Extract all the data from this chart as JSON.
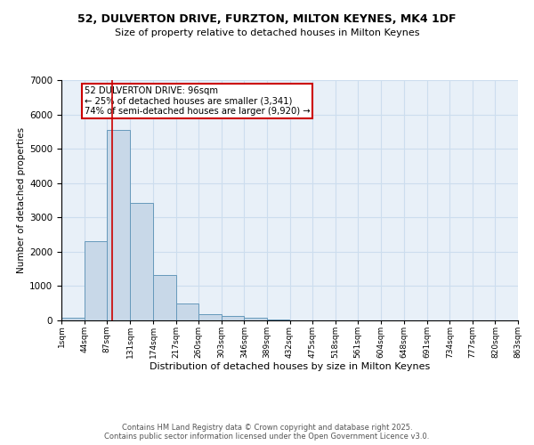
{
  "title1": "52, DULVERTON DRIVE, FURZTON, MILTON KEYNES, MK4 1DF",
  "title2": "Size of property relative to detached houses in Milton Keynes",
  "xlabel": "Distribution of detached houses by size in Milton Keynes",
  "ylabel": "Number of detached properties",
  "bar_left_edges": [
    1,
    44,
    87,
    131,
    174,
    217,
    260,
    303,
    346,
    389,
    432,
    475,
    518,
    561,
    604,
    648,
    691,
    734,
    777,
    820
  ],
  "bar_heights": [
    75,
    2300,
    5550,
    3420,
    1330,
    480,
    175,
    120,
    65,
    30,
    0,
    0,
    0,
    0,
    0,
    0,
    0,
    0,
    0,
    0
  ],
  "bin_width": 43,
  "bar_color": "#c8d8e8",
  "bar_edgecolor": "#6699bb",
  "tick_labels": [
    "1sqm",
    "44sqm",
    "87sqm",
    "131sqm",
    "174sqm",
    "217sqm",
    "260sqm",
    "303sqm",
    "346sqm",
    "389sqm",
    "432sqm",
    "475sqm",
    "518sqm",
    "561sqm",
    "604sqm",
    "648sqm",
    "691sqm",
    "734sqm",
    "777sqm",
    "820sqm",
    "863sqm"
  ],
  "vline_x": 96,
  "vline_color": "#cc0000",
  "annotation_text": "52 DULVERTON DRIVE: 96sqm\n← 25% of detached houses are smaller (3,341)\n74% of semi-detached houses are larger (9,920) →",
  "annotation_box_color": "#ffffff",
  "annotation_box_edgecolor": "#cc0000",
  "ylim": [
    0,
    7000
  ],
  "yticks": [
    0,
    1000,
    2000,
    3000,
    4000,
    5000,
    6000,
    7000
  ],
  "grid_color": "#ccddee",
  "bg_color": "#e8f0f8",
  "footer1": "Contains HM Land Registry data © Crown copyright and database right 2025.",
  "footer2": "Contains public sector information licensed under the Open Government Licence v3.0."
}
